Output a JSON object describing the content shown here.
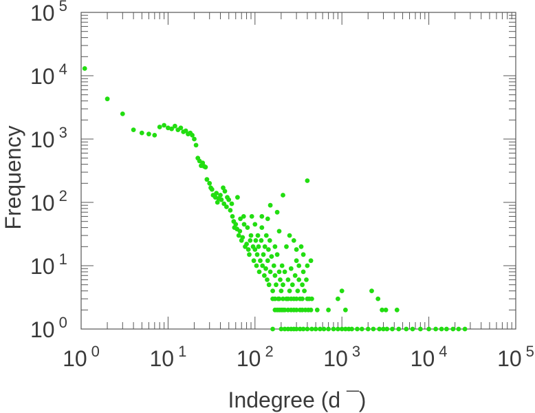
{
  "chart_data": {
    "type": "scatter",
    "title": "",
    "xlabel": "Indegree (d ¯)",
    "ylabel": "Frequency",
    "xscale": "log",
    "yscale": "log",
    "xlim": [
      1,
      100000
    ],
    "ylim": [
      1,
      100000
    ],
    "grid": false,
    "x_tick_labels": [
      {
        "base": "10",
        "exp": "0"
      },
      {
        "base": "10",
        "exp": "1"
      },
      {
        "base": "10",
        "exp": "2"
      },
      {
        "base": "10",
        "exp": "3"
      },
      {
        "base": "10",
        "exp": "4"
      },
      {
        "base": "10",
        "exp": "5"
      }
    ],
    "y_tick_labels": [
      {
        "base": "10",
        "exp": "0"
      },
      {
        "base": "10",
        "exp": "1"
      },
      {
        "base": "10",
        "exp": "2"
      },
      {
        "base": "10",
        "exp": "3"
      },
      {
        "base": "10",
        "exp": "4"
      },
      {
        "base": "10",
        "exp": "5"
      }
    ],
    "marker_color": "#22dd11",
    "series": [
      {
        "points": [
          [
            1.1,
            13000
          ],
          [
            2,
            4300
          ],
          [
            3,
            2500
          ],
          [
            4,
            1400
          ],
          [
            5,
            1250
          ],
          [
            6,
            1200
          ],
          [
            7,
            1150
          ],
          [
            8,
            1550
          ],
          [
            9,
            1650
          ],
          [
            10,
            1500
          ],
          [
            11,
            1450
          ],
          [
            12,
            1600
          ],
          [
            13,
            1400
          ],
          [
            14,
            1500
          ],
          [
            15,
            1300
          ],
          [
            16,
            1350
          ],
          [
            17,
            1200
          ],
          [
            18,
            1250
          ],
          [
            19,
            1150
          ],
          [
            20,
            1000
          ],
          [
            21,
            800
          ],
          [
            22,
            500
          ],
          [
            23,
            450
          ],
          [
            24,
            380
          ],
          [
            25,
            420
          ],
          [
            26,
            370
          ],
          [
            27,
            360
          ],
          [
            28,
            230
          ],
          [
            30,
            200
          ],
          [
            31,
            170
          ],
          [
            32,
            160
          ],
          [
            33,
            130
          ],
          [
            35,
            120
          ],
          [
            36,
            140
          ],
          [
            37,
            100
          ],
          [
            38,
            115
          ],
          [
            40,
            130
          ],
          [
            41,
            110
          ],
          [
            43,
            170
          ],
          [
            44,
            95
          ],
          [
            45,
            150
          ],
          [
            47,
            85
          ],
          [
            48,
            120
          ],
          [
            50,
            110
          ],
          [
            52,
            75
          ],
          [
            54,
            95
          ],
          [
            55,
            60
          ],
          [
            57,
            50
          ],
          [
            58,
            40
          ],
          [
            60,
            45
          ],
          [
            62,
            38
          ],
          [
            63,
            120
          ],
          [
            65,
            30
          ],
          [
            67,
            35
          ],
          [
            68,
            55
          ],
          [
            70,
            25
          ],
          [
            72,
            28
          ],
          [
            74,
            60
          ],
          [
            75,
            45
          ],
          [
            77,
            20
          ],
          [
            80,
            22
          ],
          [
            82,
            40
          ],
          [
            84,
            18
          ],
          [
            86,
            15
          ],
          [
            88,
            25
          ],
          [
            90,
            30
          ],
          [
            92,
            60
          ],
          [
            95,
            20
          ],
          [
            97,
            12
          ],
          [
            100,
            18
          ],
          [
            102,
            25
          ],
          [
            104,
            10
          ],
          [
            106,
            15
          ],
          [
            108,
            30
          ],
          [
            110,
            20
          ],
          [
            112,
            8
          ],
          [
            115,
            12
          ],
          [
            118,
            25
          ],
          [
            120,
            40
          ],
          [
            122,
            10
          ],
          [
            125,
            15
          ],
          [
            128,
            7
          ],
          [
            130,
            20
          ],
          [
            133,
            9
          ],
          [
            135,
            30
          ],
          [
            138,
            6
          ],
          [
            140,
            12
          ],
          [
            143,
            18
          ],
          [
            145,
            5
          ],
          [
            148,
            25
          ],
          [
            150,
            8
          ],
          [
            155,
            14
          ],
          [
            160,
            4
          ],
          [
            165,
            10
          ],
          [
            170,
            7
          ],
          [
            175,
            5
          ],
          [
            180,
            15
          ],
          [
            185,
            3
          ],
          [
            190,
            8
          ],
          [
            195,
            6
          ],
          [
            200,
            4
          ],
          [
            205,
            10
          ],
          [
            210,
            5
          ],
          [
            220,
            8
          ],
          [
            230,
            3
          ],
          [
            240,
            6
          ],
          [
            250,
            4
          ],
          [
            260,
            9
          ],
          [
            270,
            5
          ],
          [
            280,
            3
          ],
          [
            290,
            7
          ],
          [
            300,
            12
          ],
          [
            310,
            4
          ],
          [
            320,
            6
          ],
          [
            330,
            3
          ],
          [
            340,
            20
          ],
          [
            350,
            5
          ],
          [
            360,
            8
          ],
          [
            370,
            4
          ],
          [
            390,
            6
          ],
          [
            400,
            10
          ],
          [
            420,
            3
          ],
          [
            440,
            12
          ],
          [
            400,
            220
          ],
          [
            210,
            130
          ],
          [
            280,
            25
          ],
          [
            300,
            18
          ],
          [
            360,
            15
          ],
          [
            180,
            70
          ],
          [
            150,
            90
          ],
          [
            100,
            45
          ],
          [
            120,
            60
          ],
          [
            140,
            55
          ],
          [
            170,
            20
          ],
          [
            190,
            35
          ],
          [
            230,
            20
          ],
          [
            250,
            30
          ],
          [
            320,
            10
          ],
          [
            170,
            2
          ],
          [
            180,
            2
          ],
          [
            190,
            2
          ],
          [
            200,
            2
          ],
          [
            210,
            2
          ],
          [
            220,
            2
          ],
          [
            240,
            2
          ],
          [
            260,
            2
          ],
          [
            280,
            2
          ],
          [
            300,
            2
          ],
          [
            330,
            2
          ],
          [
            350,
            2
          ],
          [
            380,
            2
          ],
          [
            410,
            2
          ],
          [
            440,
            2
          ],
          [
            520,
            2
          ],
          [
            700,
            2
          ],
          [
            160,
            3
          ],
          [
            170,
            3
          ],
          [
            190,
            3
          ],
          [
            210,
            3
          ],
          [
            240,
            3
          ],
          [
            260,
            3
          ],
          [
            300,
            3
          ],
          [
            350,
            3
          ],
          [
            400,
            3
          ],
          [
            450,
            3
          ],
          [
            900,
            3
          ],
          [
            1000,
            4
          ],
          [
            1100,
            2
          ],
          [
            2200,
            4
          ],
          [
            2600,
            3
          ],
          [
            2900,
            2
          ],
          [
            3200,
            2
          ],
          [
            4300,
            2
          ],
          [
            160,
            1
          ],
          [
            200,
            1
          ],
          [
            220,
            1
          ],
          [
            240,
            1
          ],
          [
            260,
            1
          ],
          [
            280,
            1
          ],
          [
            300,
            1
          ],
          [
            330,
            1
          ],
          [
            360,
            1
          ],
          [
            400,
            1
          ],
          [
            450,
            1
          ],
          [
            500,
            1
          ],
          [
            560,
            1
          ],
          [
            620,
            1
          ],
          [
            700,
            1
          ],
          [
            800,
            1
          ],
          [
            900,
            1
          ],
          [
            1000,
            1
          ],
          [
            1100,
            1
          ],
          [
            1200,
            1
          ],
          [
            1300,
            1
          ],
          [
            1500,
            1
          ],
          [
            1700,
            1
          ],
          [
            2000,
            1
          ],
          [
            2300,
            1
          ],
          [
            2700,
            1
          ],
          [
            3000,
            1
          ],
          [
            3300,
            1
          ],
          [
            3800,
            1
          ],
          [
            4500,
            1
          ],
          [
            5500,
            1
          ],
          [
            6500,
            1
          ],
          [
            8000,
            1
          ],
          [
            10000,
            1
          ],
          [
            12000,
            1
          ],
          [
            14000,
            1
          ],
          [
            16000,
            1
          ],
          [
            19000,
            1
          ],
          [
            22000,
            1
          ],
          [
            26000,
            1
          ]
        ]
      }
    ]
  }
}
